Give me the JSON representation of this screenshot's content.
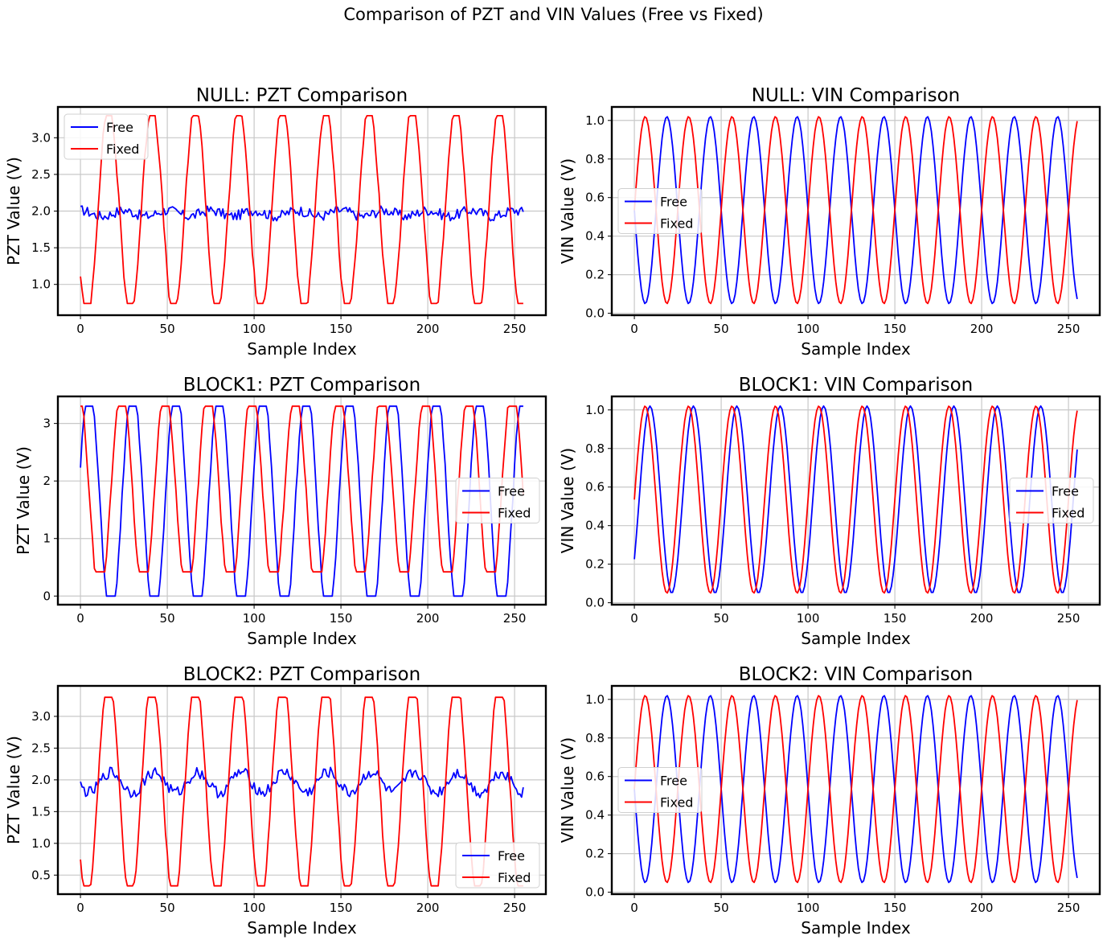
{
  "figure_title": "Comparison of PZT and VIN Values (Free vs Fixed)",
  "colors": {
    "free": "#0000ff",
    "fixed": "#ff0000",
    "grid": "#c8c8c8",
    "axes": "#000000"
  },
  "chart_data": [
    {
      "type": "line",
      "title": "NULL: PZT Comparison",
      "xlabel": "Sample Index",
      "ylabel": "PZT Value (V)",
      "xlim": [
        -13,
        268
      ],
      "xticks": [
        0,
        50,
        100,
        150,
        200,
        250
      ],
      "ylim": [
        0.58,
        3.42
      ],
      "yticks": [
        1.0,
        1.5,
        2.0,
        2.5,
        3.0
      ],
      "ytick_labels": [
        "1.0",
        "1.5",
        "2.0",
        "2.5",
        "3.0"
      ],
      "grid": true,
      "legend": "upper left",
      "series": [
        {
          "name": "Free",
          "kind": "noisy",
          "base": 1.97,
          "amp": 0.04,
          "noise": 0.07,
          "period": 25,
          "phase": 0,
          "n": 256
        },
        {
          "name": "Fixed",
          "kind": "clipped",
          "offset": 2.0,
          "amp": 1.45,
          "min": 0.74,
          "max": 3.3,
          "period": 25,
          "phase": 0.35,
          "n": 256
        }
      ]
    },
    {
      "type": "line",
      "title": "NULL: VIN Comparison",
      "xlabel": "Sample Index",
      "ylabel": "VIN Value (V)",
      "xlim": [
        -13,
        268
      ],
      "xticks": [
        0,
        50,
        100,
        150,
        200,
        250
      ],
      "ylim": [
        -0.01,
        1.07
      ],
      "yticks": [
        0.0,
        0.2,
        0.4,
        0.6,
        0.8,
        1.0
      ],
      "ytick_labels": [
        "0.0",
        "0.2",
        "0.4",
        "0.6",
        "0.8",
        "1.0"
      ],
      "grid": true,
      "legend": "center left",
      "series": [
        {
          "name": "Free",
          "kind": "sine",
          "offset": 0.535,
          "amp": 0.485,
          "period": 25,
          "phase": 0.25,
          "n": 256
        },
        {
          "name": "Fixed",
          "kind": "sine",
          "offset": 0.535,
          "amp": 0.485,
          "period": 25,
          "phase": -0.25,
          "n": 256
        }
      ]
    },
    {
      "type": "line",
      "title": "BLOCK1: PZT Comparison",
      "xlabel": "Sample Index",
      "ylabel": "PZT Value (V)",
      "xlim": [
        -13,
        268
      ],
      "xticks": [
        0,
        50,
        100,
        150,
        200,
        250
      ],
      "ylim": [
        -0.15,
        3.47
      ],
      "yticks": [
        0,
        1,
        2,
        3
      ],
      "ytick_labels": [
        "0",
        "1",
        "2",
        "3"
      ],
      "grid": true,
      "legend": "center right",
      "series": [
        {
          "name": "Free",
          "kind": "clipped",
          "offset": 1.6,
          "amp": 2.1,
          "min": 0.0,
          "max": 3.3,
          "period": 25,
          "phase": -0.2,
          "n": 256
        },
        {
          "name": "Fixed",
          "kind": "clipped",
          "offset": 1.8,
          "amp": 1.85,
          "min": 0.42,
          "max": 3.3,
          "period": 25,
          "phase": 0.05,
          "n": 256
        }
      ]
    },
    {
      "type": "line",
      "title": "BLOCK1: VIN Comparison",
      "xlabel": "Sample Index",
      "ylabel": "VIN Value (V)",
      "xlim": [
        -13,
        268
      ],
      "xticks": [
        0,
        50,
        100,
        150,
        200,
        250
      ],
      "ylim": [
        -0.01,
        1.07
      ],
      "yticks": [
        0.0,
        0.2,
        0.4,
        0.6,
        0.8,
        1.0
      ],
      "ytick_labels": [
        "0.0",
        "0.2",
        "0.4",
        "0.6",
        "0.8",
        "1.0"
      ],
      "grid": true,
      "legend": "center right",
      "series": [
        {
          "name": "Free",
          "kind": "sine",
          "offset": 0.535,
          "amp": 0.485,
          "period": 25,
          "phase": -0.36,
          "n": 256
        },
        {
          "name": "Fixed",
          "kind": "sine",
          "offset": 0.535,
          "amp": 0.485,
          "period": 25,
          "phase": -0.25,
          "n": 256
        }
      ]
    },
    {
      "type": "line",
      "title": "BLOCK2: PZT Comparison",
      "xlabel": "Sample Index",
      "ylabel": "PZT Value (V)",
      "xlim": [
        -13,
        268
      ],
      "xticks": [
        0,
        50,
        100,
        150,
        200,
        250
      ],
      "ylim": [
        0.2,
        3.48
      ],
      "yticks": [
        0.5,
        1.0,
        1.5,
        2.0,
        2.5,
        3.0
      ],
      "ytick_labels": [
        "0.5",
        "1.0",
        "1.5",
        "2.0",
        "2.5",
        "3.0"
      ],
      "grid": true,
      "legend": "lower right",
      "series": [
        {
          "name": "Free",
          "kind": "noisy",
          "base": 1.96,
          "amp": 0.16,
          "noise": 0.09,
          "period": 25,
          "phase": 0.3,
          "n": 256
        },
        {
          "name": "Fixed",
          "kind": "clipped",
          "offset": 1.85,
          "amp": 1.8,
          "min": 0.33,
          "max": 3.3,
          "period": 25,
          "phase": 0.35,
          "n": 256
        }
      ]
    },
    {
      "type": "line",
      "title": "BLOCK2: VIN Comparison",
      "xlabel": "Sample Index",
      "ylabel": "VIN Value (V)",
      "xlim": [
        -13,
        268
      ],
      "xticks": [
        0,
        50,
        100,
        150,
        200,
        250
      ],
      "ylim": [
        -0.01,
        1.07
      ],
      "yticks": [
        0.0,
        0.2,
        0.4,
        0.6,
        0.8,
        1.0
      ],
      "ytick_labels": [
        "0.0",
        "0.2",
        "0.4",
        "0.6",
        "0.8",
        "1.0"
      ],
      "grid": true,
      "legend": "center left",
      "series": [
        {
          "name": "Free",
          "kind": "sine",
          "offset": 0.535,
          "amp": 0.485,
          "period": 25,
          "phase": 0.25,
          "n": 256
        },
        {
          "name": "Fixed",
          "kind": "sine",
          "offset": 0.535,
          "amp": 0.485,
          "period": 25,
          "phase": -0.25,
          "n": 256
        }
      ]
    }
  ]
}
